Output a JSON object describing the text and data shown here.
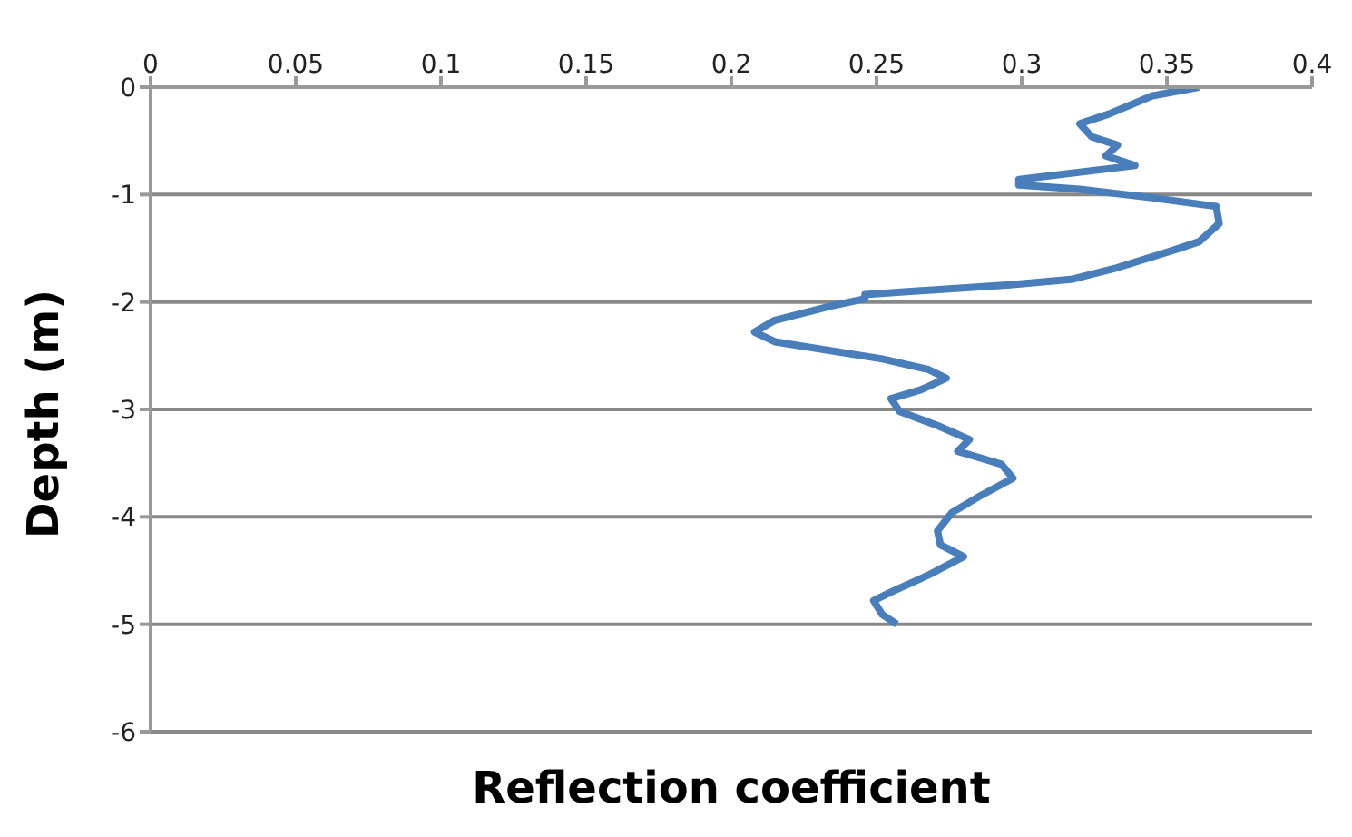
{
  "chart_data": {
    "type": "line",
    "xlabel": "Reflection coefficient",
    "ylabel": "Depth (m)",
    "x": [
      0.361,
      0.345,
      0.33,
      0.32,
      0.324,
      0.333,
      0.329,
      0.339,
      0.299,
      0.299,
      0.32,
      0.345,
      0.367,
      0.368,
      0.361,
      0.352,
      0.333,
      0.317,
      0.296,
      0.246,
      0.246,
      0.234,
      0.215,
      0.208,
      0.215,
      0.252,
      0.268,
      0.274,
      0.265,
      0.255,
      0.258,
      0.271,
      0.282,
      0.278,
      0.293,
      0.297,
      0.286,
      0.276,
      0.271,
      0.272,
      0.28,
      0.268,
      0.255,
      0.249,
      0.252,
      0.257
    ],
    "series": [
      {
        "color": "#4a7ebb",
        "values": [
          0,
          -0.08,
          -0.25,
          -0.34,
          -0.46,
          -0.54,
          -0.64,
          -0.73,
          -0.86,
          -0.91,
          -0.95,
          -1.03,
          -1.11,
          -1.27,
          -1.44,
          -1.52,
          -1.68,
          -1.79,
          -1.84,
          -1.93,
          -1.97,
          -2.04,
          -2.17,
          -2.28,
          -2.37,
          -2.53,
          -2.63,
          -2.71,
          -2.82,
          -2.9,
          -3.02,
          -3.15,
          -3.28,
          -3.39,
          -3.51,
          -3.64,
          -3.8,
          -3.96,
          -4.13,
          -4.26,
          -4.37,
          -4.54,
          -4.7,
          -4.78,
          -4.91,
          -5.0
        ]
      }
    ],
    "xlim": [
      0,
      0.4
    ],
    "xticks": [
      0,
      0.05,
      0.1,
      0.15,
      0.2,
      0.25,
      0.3,
      0.35,
      0.4
    ],
    "ylim": [
      -6,
      0
    ],
    "yticks": [
      -6,
      -5,
      -4,
      -3,
      -2,
      -1,
      0
    ],
    "grid": "y",
    "marker": "none",
    "line_style": "solid"
  }
}
